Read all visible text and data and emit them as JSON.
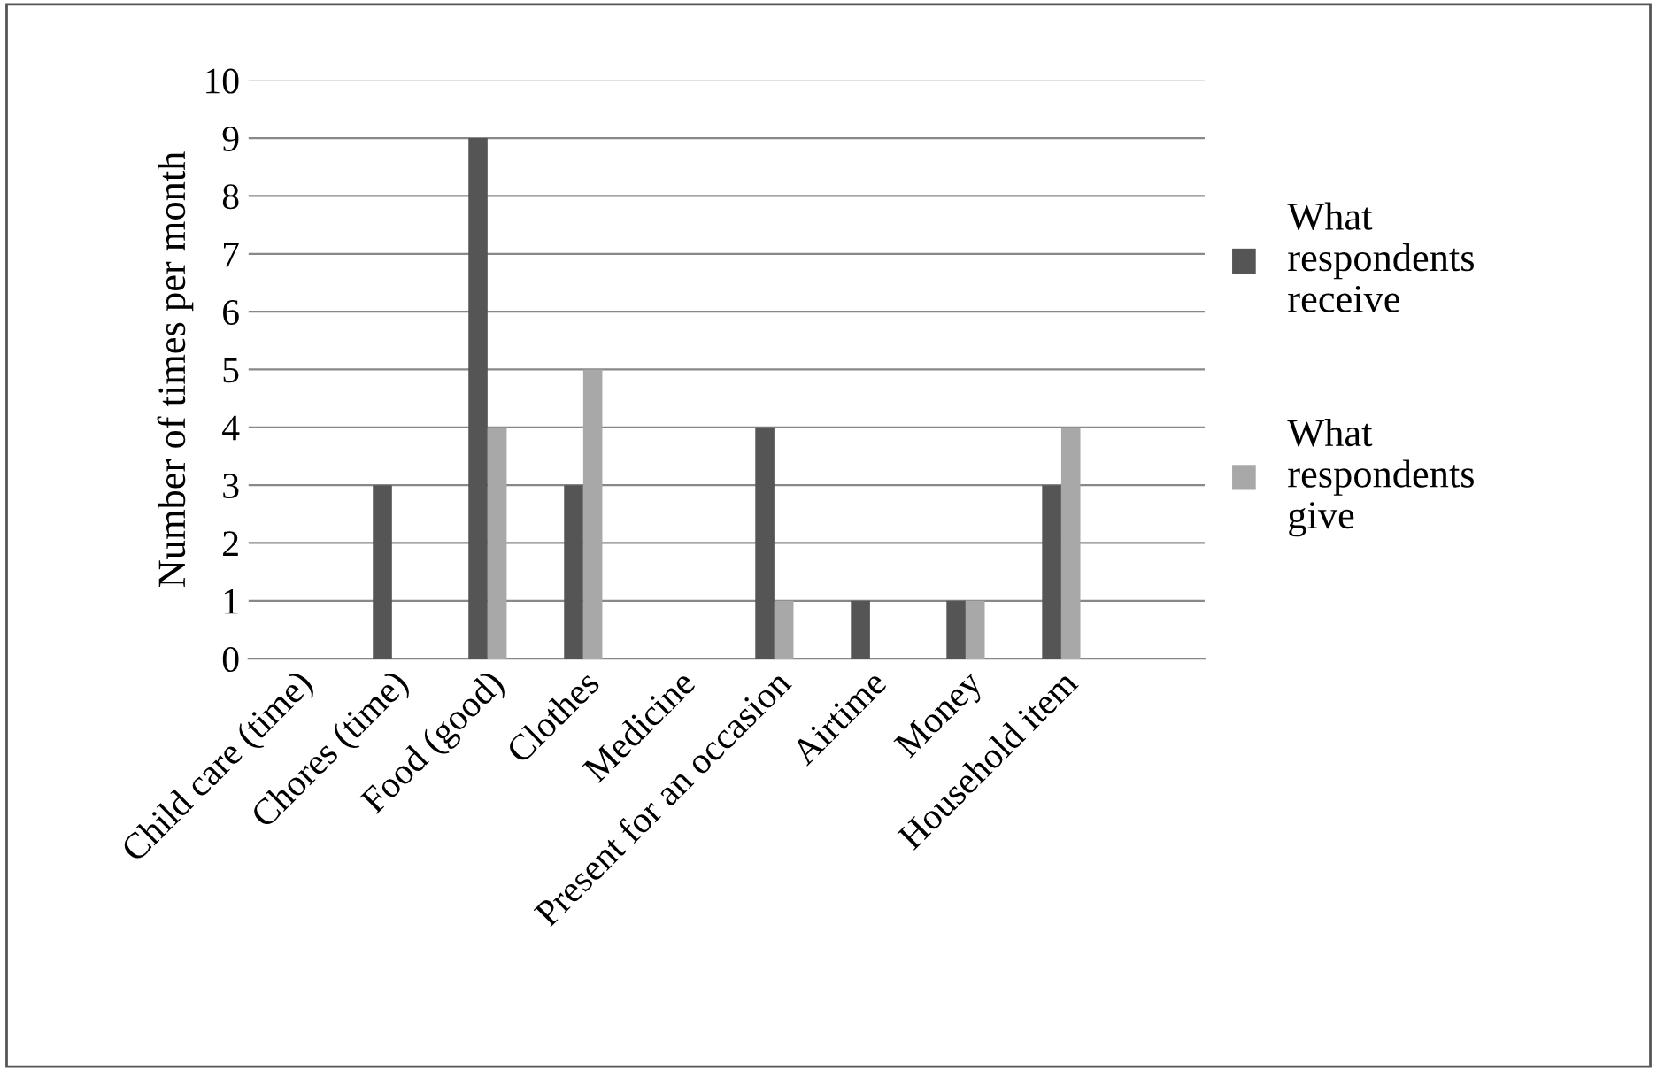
{
  "chart_data": {
    "type": "bar",
    "ylabel": "Number of times per month",
    "categories": [
      "Child care (time)",
      "Chores (time)",
      "Food (good)",
      "Clothes",
      "Medicine",
      "Present for an occasion",
      "Airtime",
      "Money",
      "Household item",
      null
    ],
    "series": [
      {
        "name": "What respondents receive",
        "color": "#555555",
        "values": [
          0,
          3,
          9,
          3,
          0,
          4,
          1,
          1,
          3,
          0
        ]
      },
      {
        "name": "What respondents give",
        "color": "#a8a8a8",
        "values": [
          0,
          0,
          4,
          5,
          0,
          1,
          0,
          1,
          4,
          0
        ]
      }
    ],
    "ylim": [
      0,
      10
    ],
    "yticks": [
      0,
      1,
      2,
      3,
      4,
      5,
      6,
      7,
      8,
      9,
      10
    ],
    "grid": "y",
    "legend": "right"
  }
}
